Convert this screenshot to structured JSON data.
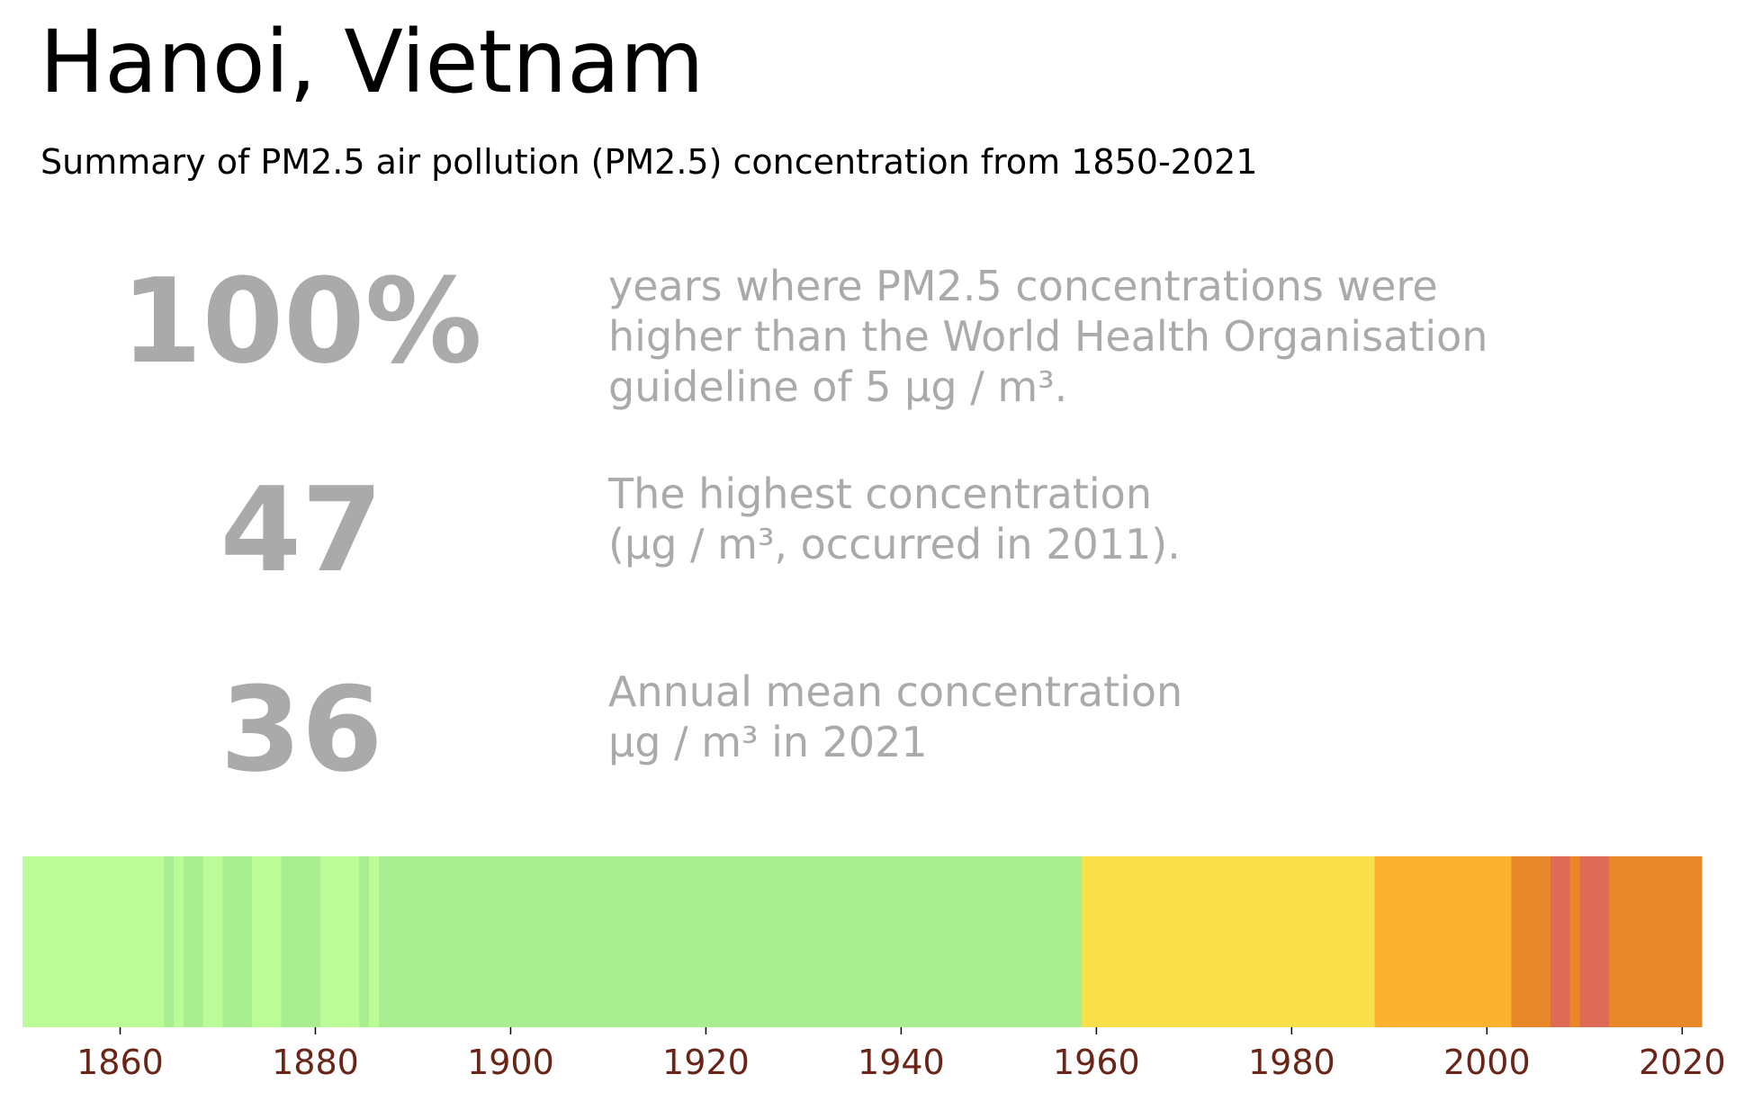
{
  "title": "Hanoi, Vietnam",
  "subtitle": "Summary of PM2.5 air pollution (PM2.5) concentration from 1850-2021",
  "stats": [
    {
      "value": "100%",
      "lines": [
        "years where PM2.5 concentrations were",
        "higher than the World Health Organisation",
        "guideline of 5 µg / m³."
      ]
    },
    {
      "value": "47",
      "lines": [
        "The highest concentration",
        "(µg / m³, occurred in 2011)."
      ]
    },
    {
      "value": "36",
      "lines": [
        "Annual mean concentration",
        "µg / m³ in 2021"
      ]
    }
  ],
  "chart_data": {
    "type": "heatmap",
    "title": "",
    "xlabel": "",
    "ylabel": "",
    "xlim": [
      1850,
      2022
    ],
    "xticks": [
      1860,
      1880,
      1900,
      1920,
      1940,
      1960,
      1980,
      2000,
      2020
    ],
    "tick_color": "#6b2418",
    "grid": false,
    "segments": [
      {
        "start": 1850,
        "end": 1864.5,
        "color": "#bbfc98"
      },
      {
        "start": 1864.5,
        "end": 1865.5,
        "color": "#a8ed8f"
      },
      {
        "start": 1865.5,
        "end": 1866.5,
        "color": "#bbfc98"
      },
      {
        "start": 1866.5,
        "end": 1868.5,
        "color": "#a8ed8f"
      },
      {
        "start": 1868.5,
        "end": 1870.5,
        "color": "#bbfc98"
      },
      {
        "start": 1870.5,
        "end": 1873.5,
        "color": "#a8ed8f"
      },
      {
        "start": 1873.5,
        "end": 1876.5,
        "color": "#bbfc98"
      },
      {
        "start": 1876.5,
        "end": 1880.5,
        "color": "#a8ed8f"
      },
      {
        "start": 1880.5,
        "end": 1884.5,
        "color": "#bbfc98"
      },
      {
        "start": 1884.5,
        "end": 1885.5,
        "color": "#a8ed8f"
      },
      {
        "start": 1885.5,
        "end": 1886.5,
        "color": "#bbfc98"
      },
      {
        "start": 1886.5,
        "end": 1958.5,
        "color": "#a8ed8f"
      },
      {
        "start": 1958.5,
        "end": 1988.5,
        "color": "#f9e04b"
      },
      {
        "start": 1988.5,
        "end": 2002.5,
        "color": "#fbb22e"
      },
      {
        "start": 2002.5,
        "end": 2006.5,
        "color": "#e98828"
      },
      {
        "start": 2006.5,
        "end": 2008.5,
        "color": "#de6b56"
      },
      {
        "start": 2008.5,
        "end": 2009.5,
        "color": "#e98828"
      },
      {
        "start": 2009.5,
        "end": 2012.5,
        "color": "#de6b56"
      },
      {
        "start": 2012.5,
        "end": 2022,
        "color": "#e98828"
      }
    ]
  }
}
